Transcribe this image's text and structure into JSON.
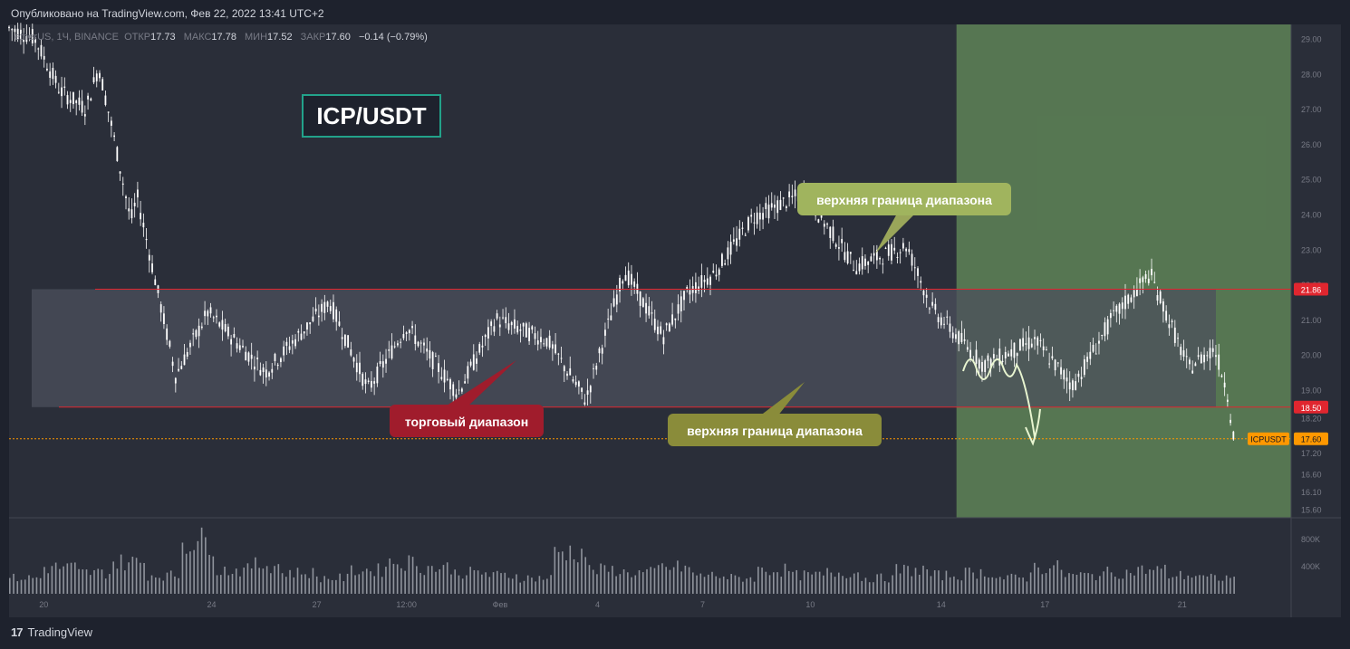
{
  "header": {
    "published": "Опубликовано на TradingView.com, Фев 22, 2022 13:41 UTC+2"
  },
  "legend": {
    "symbol": "etherUS, 1Ч, BINANCE",
    "open_label": "ОТКР",
    "open": "17.73",
    "high_label": "МАКС",
    "high": "17.78",
    "low_label": "МИН",
    "low": "17.52",
    "close_label": "ЗАКР",
    "close": "17.60",
    "change": "−0.14 (−0.79%)"
  },
  "footer": {
    "logo_mark": "17",
    "logo_text": "TradingView"
  },
  "colors": {
    "background": "#1e222d",
    "panel": "#2a2e39",
    "range_box": "#434651",
    "range_line": "#e0262f",
    "forecast_zone": "#6b9a5e",
    "price_line": "#ff9800",
    "candle": "#ffffff",
    "volume": "#b2b5be"
  },
  "chart_data": {
    "type": "candlestick",
    "title": "ICP/USDT",
    "y_axis": {
      "range": [
        15.35,
        29.4
      ],
      "ticks": [
        "29.00",
        "28.00",
        "27.00",
        "26.00",
        "25.00",
        "24.00",
        "23.00",
        "22.00",
        "21.00",
        "20.00",
        "19.00",
        "18.20",
        "17.20",
        "16.60",
        "16.10",
        "15.60"
      ],
      "tick_values": [
        29.0,
        28.0,
        27.0,
        26.0,
        25.0,
        24.0,
        23.0,
        22.0,
        21.0,
        20.0,
        19.0,
        18.2,
        17.2,
        16.6,
        16.1,
        15.6
      ]
    },
    "x_axis": {
      "ticks": [
        "20",
        "24",
        "27",
        "12:00",
        "Фев",
        "4",
        "7",
        "10",
        "14",
        "17",
        "21"
      ],
      "tick_positions": [
        0.027,
        0.158,
        0.24,
        0.31,
        0.383,
        0.459,
        0.541,
        0.625,
        0.727,
        0.808,
        0.915
      ]
    },
    "volume_axis": {
      "ticks": [
        "800K",
        "400K"
      ]
    },
    "levels": [
      {
        "label": "21.86",
        "value": 21.86,
        "color": "#e0262f"
      },
      {
        "label": "18.50",
        "value": 18.5,
        "color": "#e0262f"
      }
    ],
    "last_price": {
      "symbol": "ICPUSDT",
      "value": 17.6,
      "label": "17.60"
    },
    "range_zone": {
      "top": 21.86,
      "bottom": 18.5,
      "x_start": 0.0,
      "x_end": 0.85
    },
    "forecast_zone": {
      "x_start": 0.739,
      "x_end": 1.0
    },
    "annotations": [
      {
        "text": "верхняя граница диапазона",
        "style": "olive-light"
      },
      {
        "text": "торговый диапазон",
        "style": "red"
      },
      {
        "text": "верхняя граница диапазона",
        "style": "olive-dark"
      }
    ],
    "series": [
      {
        "name": "ICPUSDT",
        "x": [
          0.0,
          0.02,
          0.04,
          0.06,
          0.07,
          0.08,
          0.095,
          0.1,
          0.13,
          0.155,
          0.2,
          0.25,
          0.28,
          0.31,
          0.35,
          0.38,
          0.42,
          0.45,
          0.48,
          0.51,
          0.53,
          0.55,
          0.58,
          0.62,
          0.66,
          0.7,
          0.72,
          0.76,
          0.8,
          0.83,
          0.86,
          0.89,
          0.92,
          0.94,
          0.95,
          0.955
        ],
        "y": [
          29.3,
          29.0,
          27.5,
          27.0,
          28.2,
          26.5,
          23.8,
          24.5,
          19.4,
          21.2,
          19.5,
          21.5,
          19.0,
          20.8,
          18.9,
          21.0,
          20.4,
          18.7,
          22.4,
          20.5,
          21.8,
          22.3,
          23.9,
          24.6,
          22.5,
          23.1,
          21.3,
          19.7,
          20.4,
          19.1,
          21.0,
          22.3,
          19.6,
          20.2,
          19.0,
          17.7
        ]
      }
    ],
    "volume": {
      "values": [
        0.3,
        0.5,
        0.4,
        0.6,
        0.35,
        1.0,
        0.45,
        0.55,
        0.4,
        0.3,
        0.45,
        0.6,
        0.5,
        0.4,
        0.35,
        0.3,
        0.8,
        0.45,
        0.4,
        0.5,
        0.35,
        0.3,
        0.45,
        0.35,
        0.4,
        0.3,
        0.45,
        0.35,
        0.4,
        0.3,
        0.5,
        0.35,
        0.4,
        0.45,
        0.35,
        0.3
      ]
    }
  }
}
